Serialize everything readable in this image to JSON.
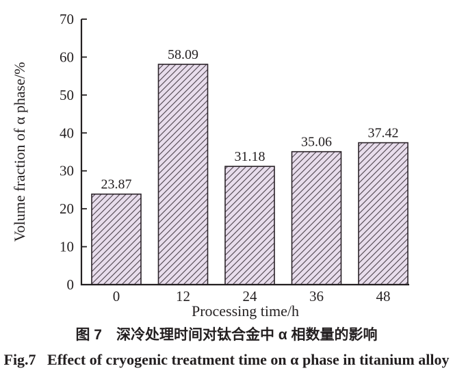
{
  "figure": {
    "captions": {
      "zh": "图 7　深冷处理时间对钛合金中 α 相数量的影响",
      "en": "Fig.7   Effect of cryogenic treatment time on α phase in titanium alloy"
    }
  },
  "chart_data": {
    "type": "bar",
    "categories": [
      "0",
      "12",
      "24",
      "36",
      "48"
    ],
    "values": [
      23.87,
      58.09,
      31.18,
      35.06,
      37.42
    ],
    "value_labels": [
      "23.87",
      "58.09",
      "31.18",
      "35.06",
      "37.42"
    ],
    "xlabel": "Processing time/h",
    "ylabel": "Volume fraction of α phase/%",
    "ylim": [
      0,
      70
    ],
    "yticks": [
      0,
      10,
      20,
      30,
      40,
      50,
      60,
      70
    ],
    "grid": false,
    "legend": false,
    "style": {
      "bar_fill": "#e8ddec",
      "hatch": "forward-diagonal",
      "hatch_color": "#4b424b",
      "bar_border": "#2a2228",
      "axis_color": "#231f20",
      "text_color": "#231f20",
      "background": "#ffffff"
    }
  }
}
